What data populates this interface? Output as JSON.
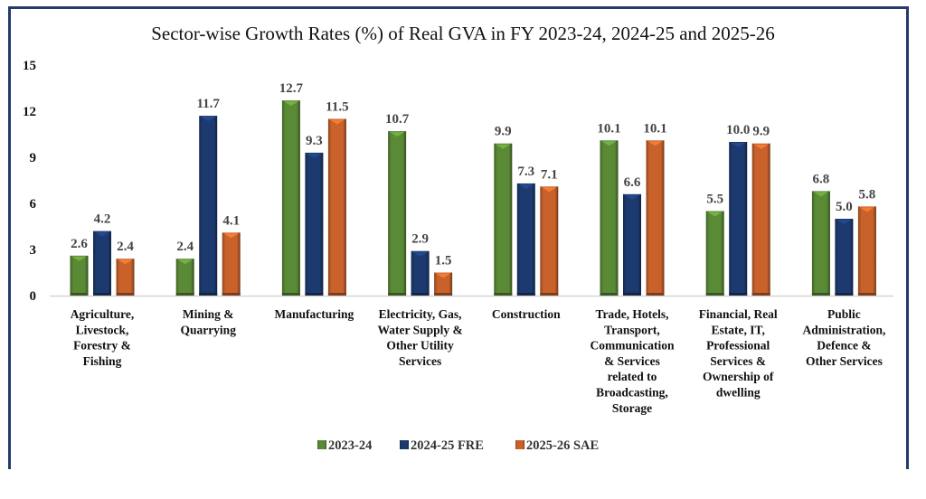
{
  "chart_data": {
    "type": "bar",
    "title": "Sector-wise Growth Rates (%) of Real GVA in FY 2023-24, 2024-25 and 2025-26",
    "xlabel": "",
    "ylabel": "",
    "ylim": [
      0,
      15
    ],
    "yticks": [
      0,
      3,
      6,
      9,
      12,
      15
    ],
    "grid": false,
    "legend_position": "bottom",
    "categories": [
      [
        "Agriculture,",
        "Livestock,",
        "Forestry &",
        "Fishing"
      ],
      [
        "Mining &",
        "Quarrying"
      ],
      [
        "Manufacturing"
      ],
      [
        "Electricity, Gas,",
        "Water Supply &",
        "Other Utility",
        "Services"
      ],
      [
        "Construction"
      ],
      [
        "Trade, Hotels,",
        "Transport,",
        "Communication",
        "& Services",
        "related to",
        "Broadcasting,",
        "Storage"
      ],
      [
        "Financial, Real",
        "Estate, IT,",
        "Professional",
        "Services &",
        "Ownership of",
        "dwelling"
      ],
      [
        "Public",
        "Administration,",
        "Defence &",
        "Other Services"
      ]
    ],
    "series": [
      {
        "name": "2023-24",
        "color": "#5a8a36",
        "values": [
          2.6,
          2.4,
          12.7,
          10.7,
          9.9,
          10.1,
          5.5,
          6.8
        ],
        "labels": [
          "2.6",
          "2.4",
          "12.7",
          "10.7",
          "9.9",
          "10.1",
          "5.5",
          "6.8"
        ]
      },
      {
        "name": "2024-25 FRE",
        "color": "#1c3a70",
        "values": [
          4.2,
          11.7,
          9.3,
          2.9,
          7.3,
          6.6,
          10.0,
          5.0
        ],
        "labels": [
          "4.2",
          "11.7",
          "9.3",
          "2.9",
          "7.3",
          "6.6",
          "10.0",
          "5.0"
        ]
      },
      {
        "name": "2025-26 SAE",
        "color": "#c9622a",
        "values": [
          2.4,
          4.1,
          11.5,
          1.5,
          7.1,
          10.1,
          9.9,
          5.8
        ],
        "labels": [
          "2.4",
          "4.1",
          "11.5",
          "1.5",
          "7.1",
          "10.1",
          "9.9",
          "5.8"
        ]
      }
    ]
  },
  "colors": {
    "frame_border": "#25396a",
    "axis_line": "#d0d0d0"
  }
}
